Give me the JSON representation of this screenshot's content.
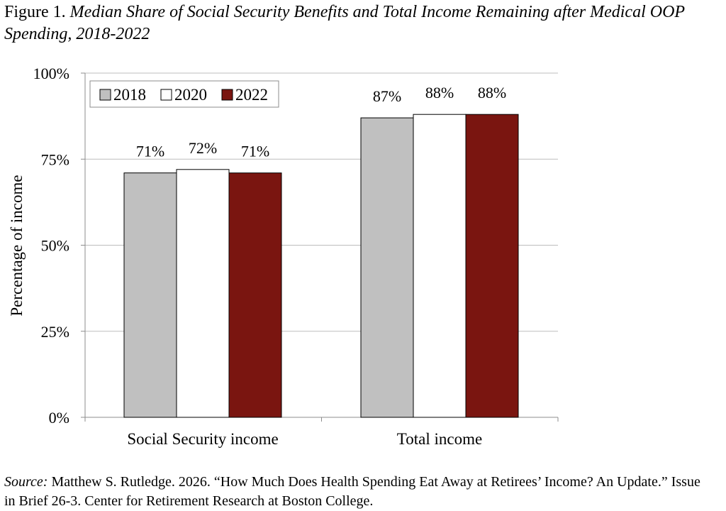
{
  "figure": {
    "label": "Figure 1.",
    "title": "Median Share of Social Security Benefits and Total Income Remaining after Medical OOP Spending, 2018-2022"
  },
  "source": {
    "label": "Source:",
    "text": "Matthew S. Rutledge. 2026. “How Much Does Health Spending Eat Away at Retirees’ Income? An Update.” Issue in Brief 26-3. Center for Retirement Research at Boston College."
  },
  "chart_data": {
    "type": "bar",
    "categories": [
      "Social Security income",
      "Total income"
    ],
    "series": [
      {
        "name": "2018",
        "values": [
          71,
          87
        ],
        "labels": [
          "71%",
          "87%"
        ],
        "color": "#c0c0c0"
      },
      {
        "name": "2020",
        "values": [
          72,
          88
        ],
        "labels": [
          "72%",
          "88%"
        ],
        "color": "#ffffff"
      },
      {
        "name": "2022",
        "values": [
          71,
          88
        ],
        "labels": [
          "71%",
          "88%"
        ],
        "color": "#7a1510"
      }
    ],
    "ylabel": "Percentage of income",
    "xlabel": "",
    "ylim": [
      0,
      100
    ],
    "yticks": [
      0,
      25,
      50,
      75,
      100
    ],
    "yticklabels": [
      "0%",
      "25%",
      "50%",
      "75%",
      "100%"
    ],
    "grid": true,
    "legend": "top-left"
  }
}
